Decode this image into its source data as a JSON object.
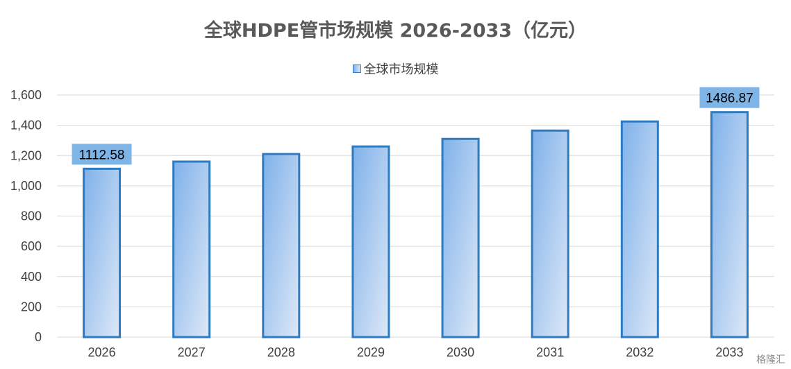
{
  "chart_data": {
    "type": "bar",
    "title": "全球HDPE管市场规模 2026-2033（亿元）",
    "categories": [
      "2026",
      "2027",
      "2028",
      "2029",
      "2030",
      "2031",
      "2032",
      "2033"
    ],
    "series": [
      {
        "name": "全球市场规模",
        "values": [
          1112.58,
          1160,
          1210,
          1260,
          1310,
          1365,
          1425,
          1486.87
        ]
      }
    ],
    "data_labels": [
      {
        "category": "2026",
        "text": "1112.58"
      },
      {
        "category": "2033",
        "text": "1486.87"
      }
    ],
    "y_ticks": [
      "0",
      "200",
      "400",
      "600",
      "800",
      "1,000",
      "1,200",
      "1,400",
      "1,600"
    ],
    "ylim": [
      0,
      1600
    ],
    "grid": true,
    "legend_position": "top-center",
    "colors": {
      "bar_border": "#2e7bbf",
      "bar_fill_start": "#7fb1ea",
      "bar_fill_end": "#dde8f7",
      "label_bg": "#7fb4e6",
      "grid": "#d9d9d9"
    }
  },
  "watermark": "格隆汇"
}
